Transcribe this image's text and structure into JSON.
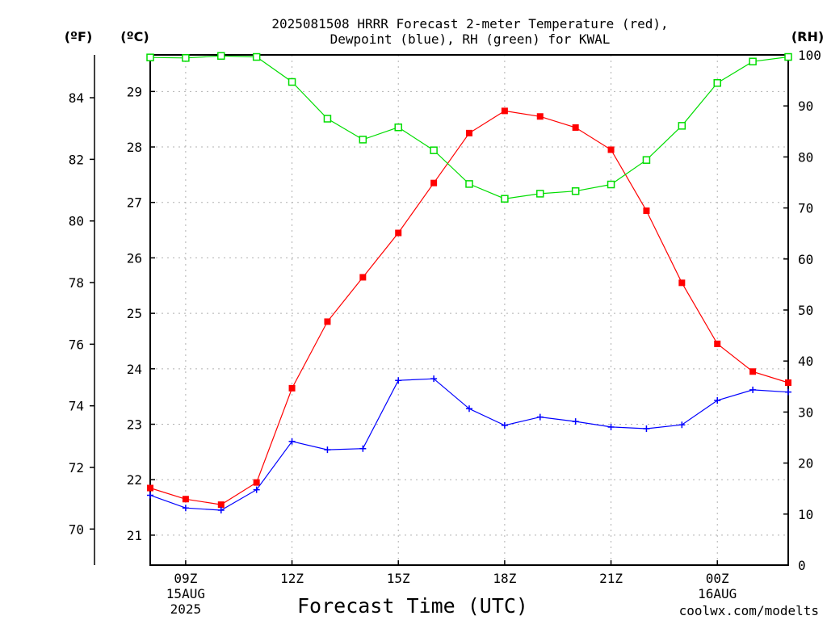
{
  "title": {
    "line1": "2025081508 HRRR Forecast 2-meter Temperature (red),",
    "line2": "Dewpoint (blue), RH (green) for KWAL"
  },
  "axes": {
    "far_left_unit": "(ºF)",
    "left_unit": "(ºC)",
    "right_unit": "(RH)",
    "xlabel": "Forecast Time (UTC)"
  },
  "watermark": "coolwx.com/modelts",
  "colors": {
    "temperature": "#ff0000",
    "dewpoint": "#0000ff",
    "rh": "#00dd00",
    "grid": "#b0b0b0",
    "watermark": "#cc0000"
  },
  "chart_data": {
    "type": "line",
    "x": [
      8,
      9,
      10,
      11,
      12,
      13,
      14,
      15,
      16,
      17,
      18,
      19,
      20,
      21,
      22,
      23,
      24,
      25,
      26
    ],
    "x_unit": "hours UTC from 00Z 15AUG2025",
    "xlim": [
      8,
      26
    ],
    "x_ticks": [
      {
        "x": 9,
        "label": "09Z",
        "line2": "15AUG",
        "line3": "2025"
      },
      {
        "x": 12,
        "label": "12Z"
      },
      {
        "x": 15,
        "label": "15Z"
      },
      {
        "x": 18,
        "label": "18Z"
      },
      {
        "x": 21,
        "label": "21Z"
      },
      {
        "x": 24,
        "label": "00Z",
        "line2": "16AUG"
      }
    ],
    "celsius_axis": {
      "ylim": [
        20.46,
        29.66
      ],
      "ticks": [
        21,
        22,
        23,
        24,
        25,
        26,
        27,
        28,
        29
      ]
    },
    "fahrenheit_axis": {
      "ylim": [
        68.83,
        85.39
      ],
      "ticks": [
        70,
        72,
        74,
        76,
        78,
        80,
        82,
        84
      ]
    },
    "rh_axis": {
      "ylim": [
        0,
        100
      ],
      "ticks": [
        0,
        10,
        20,
        30,
        40,
        50,
        60,
        70,
        80,
        90,
        100
      ]
    },
    "grid": true,
    "series": [
      {
        "name": "Temperature",
        "axis": "celsius",
        "marker": "filled-square",
        "color": "#ff0000",
        "values": [
          21.85,
          21.65,
          21.55,
          21.95,
          23.65,
          24.85,
          25.65,
          26.45,
          27.35,
          28.25,
          28.65,
          28.55,
          28.35,
          27.95,
          26.85,
          25.55,
          24.45,
          23.95,
          23.75
        ]
      },
      {
        "name": "Dewpoint",
        "axis": "celsius",
        "marker": "plus",
        "color": "#0000ff",
        "values": [
          21.72,
          21.49,
          21.45,
          21.82,
          22.69,
          22.54,
          22.56,
          23.79,
          23.82,
          23.28,
          22.98,
          23.13,
          23.05,
          22.95,
          22.92,
          22.99,
          23.43,
          23.62,
          23.58
        ]
      },
      {
        "name": "RH",
        "axis": "rh",
        "marker": "open-square",
        "color": "#00dd00",
        "values": [
          99.5,
          99.4,
          99.8,
          99.6,
          94.7,
          87.5,
          83.4,
          85.8,
          81.3,
          74.7,
          71.8,
          72.8,
          73.3,
          74.6,
          79.4,
          86.1,
          94.5,
          98.7,
          99.6
        ]
      }
    ]
  }
}
